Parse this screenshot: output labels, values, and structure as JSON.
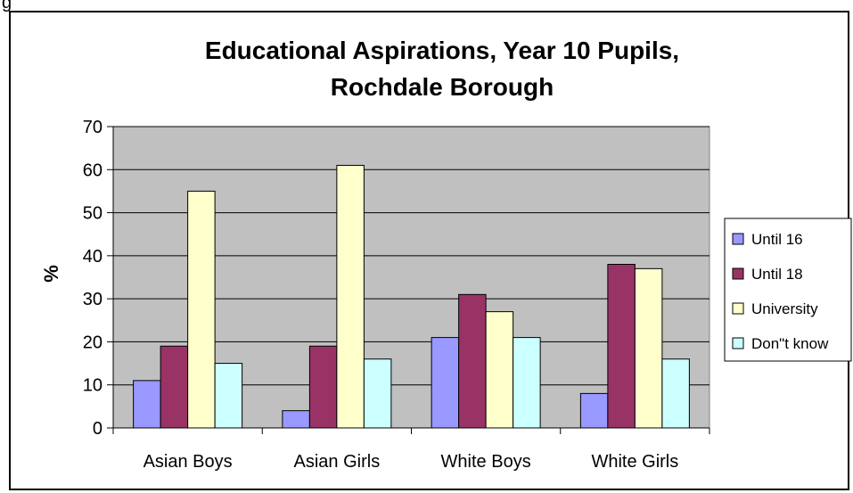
{
  "figure_label": "g",
  "chart_data": {
    "type": "bar",
    "title_line1": "Educational Aspirations, Year 10 Pupils,",
    "title_line2": "Rochdale Borough",
    "xlabel": "",
    "ylabel": "%",
    "ylim": [
      0,
      70
    ],
    "yticks": [
      "0",
      "10",
      "20",
      "30",
      "40",
      "50",
      "60",
      "70"
    ],
    "grid": true,
    "legend_position": "right",
    "categories": [
      "Asian Boys",
      "Asian Girls",
      "White Boys",
      "White Girls"
    ],
    "series": [
      {
        "name": "Until 16",
        "color": "#9999ff",
        "values": [
          11,
          4,
          21,
          8
        ]
      },
      {
        "name": "Until 18",
        "color": "#993366",
        "values": [
          19,
          19,
          31,
          38
        ]
      },
      {
        "name": "University",
        "color": "#ffffcc",
        "values": [
          55,
          61,
          27,
          37
        ]
      },
      {
        "name": "Don\"t know",
        "color": "#ccffff",
        "values": [
          15,
          16,
          21,
          16
        ]
      }
    ],
    "plot_background": "#c0c0c0"
  }
}
